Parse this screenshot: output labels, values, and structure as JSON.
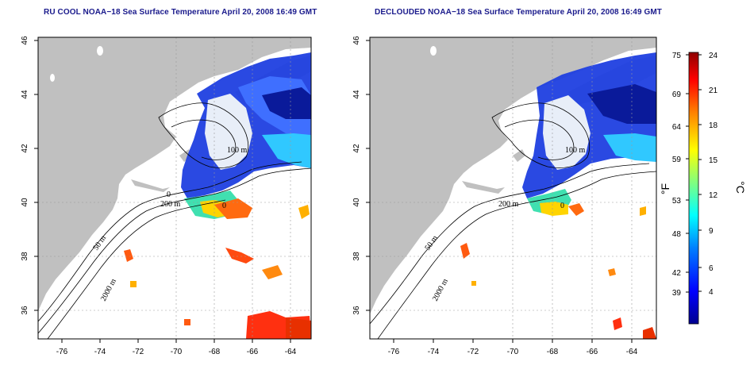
{
  "maps": [
    {
      "id": "left",
      "title": "RU COOL NOAA−18 Sea Surface Temperature April 20, 2008 16:49 GMT",
      "x_ticks": [
        "-76",
        "-74",
        "-72",
        "-70",
        "-68",
        "-66",
        "-64"
      ],
      "y_ticks": [
        "36",
        "38",
        "40",
        "42",
        "44",
        "46"
      ],
      "contour_labels": [
        "100 m",
        "200 m",
        "50 m",
        "2000 m",
        "0"
      ]
    },
    {
      "id": "right",
      "title": "DECLOUDED NOAA−18 Sea Surface Temperature April 20, 2008 16:49 GMT",
      "x_ticks": [
        "-76",
        "-74",
        "-72",
        "-70",
        "-68",
        "-66",
        "-64"
      ],
      "y_ticks": [
        "36",
        "38",
        "40",
        "42",
        "44",
        "46"
      ],
      "contour_labels": [
        "100 m",
        "200 m",
        "50 m",
        "2000 m",
        "0"
      ]
    }
  ],
  "colorbar": {
    "fahrenheit_label": "°F",
    "celsius_label": "°C",
    "fahrenheit_ticks": [
      "75",
      "69",
      "64",
      "59",
      "53",
      "48",
      "42",
      "39"
    ],
    "celsius_ticks": [
      "24",
      "21",
      "18",
      "15",
      "12",
      "9",
      "6",
      "4"
    ],
    "colors": [
      "#00008f",
      "#0000ff",
      "#0080ff",
      "#00ffff",
      "#80ff80",
      "#ffff00",
      "#ff8000",
      "#ff0000",
      "#8f0000"
    ]
  },
  "colors": {
    "land": "#c0c0c0",
    "cold_water": "#1f3fe0",
    "warm_water": "#ff5a10",
    "title": "#1a1a8c"
  }
}
